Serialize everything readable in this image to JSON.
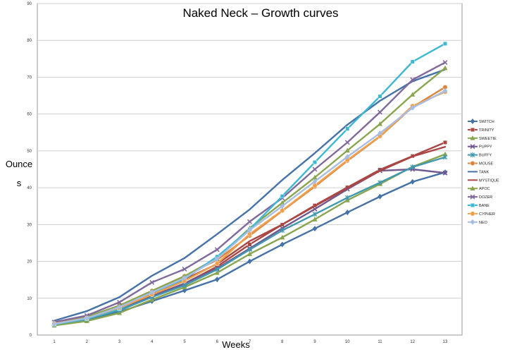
{
  "chart_data": {
    "type": "line",
    "title": "Naked Neck – Growth curves",
    "xlabel": "Weeks",
    "ylabel_line1": "Ounce",
    "ylabel_line2": "s",
    "x": [
      1,
      2,
      3,
      4,
      5,
      6,
      7,
      8,
      9,
      10,
      11,
      12,
      13
    ],
    "x_tick_labels": [
      "1",
      "2",
      "3",
      "4",
      "5",
      "6",
      "7",
      "8",
      "9",
      "10",
      "11",
      "12",
      "13"
    ],
    "ylim": [
      0,
      90
    ],
    "y_ticks": [
      0,
      10,
      20,
      30,
      40,
      50,
      60,
      70,
      80,
      90
    ],
    "y_tick_labels": [
      "0",
      "10",
      "20",
      "30",
      "40",
      "50",
      "60",
      "70",
      "80",
      "90"
    ],
    "grid": true,
    "legend_position": "right",
    "series": [
      {
        "name": "SWITCH",
        "color": "#4572a7",
        "marker": "diamond",
        "values": [
          2.8,
          4.1,
          6.3,
          9.2,
          12.1,
          15.1,
          20.0,
          24.6,
          28.9,
          33.3,
          37.6,
          41.6,
          44.2
        ]
      },
      {
        "name": "TRINITY",
        "color": "#aa4643",
        "marker": "square",
        "values": [
          3.1,
          4.6,
          7.1,
          10.6,
          14.0,
          18.6,
          24.6,
          30.0,
          35.2,
          40.1,
          44.9,
          48.6,
          52.3
        ]
      },
      {
        "name": "SWEETIE",
        "color": "#89a54e",
        "marker": "triangle",
        "values": [
          2.6,
          3.8,
          6.0,
          9.6,
          13.0,
          16.9,
          22.0,
          26.5,
          31.4,
          36.6,
          41.0,
          45.7,
          49.1
        ]
      },
      {
        "name": "PUPPY",
        "color": "#71588f",
        "marker": "x",
        "values": [
          3.0,
          4.5,
          7.2,
          10.5,
          14.0,
          18.1,
          23.5,
          29.0,
          34.2,
          39.6,
          44.6,
          45.0,
          44.0
        ]
      },
      {
        "name": "BUFFY",
        "color": "#4198af",
        "marker": "star",
        "values": [
          2.9,
          4.3,
          6.7,
          10.3,
          13.5,
          17.8,
          23.2,
          28.4,
          32.8,
          37.3,
          41.4,
          45.6,
          48.3
        ]
      },
      {
        "name": "MOUSE",
        "color": "#db843d",
        "marker": "circle",
        "values": [
          3.2,
          4.8,
          8.0,
          12.0,
          16.0,
          20.4,
          27.0,
          33.7,
          40.3,
          47.3,
          53.9,
          61.9,
          67.3
        ]
      },
      {
        "name": "TANK",
        "color": "#4572a7",
        "marker": "none",
        "values": [
          3.9,
          6.5,
          10.3,
          16.1,
          20.9,
          27.4,
          34.1,
          42.1,
          49.4,
          57.1,
          63.6,
          68.9,
          72.1
        ]
      },
      {
        "name": "MYSTIQUE",
        "color": "#aa4643",
        "marker": "none",
        "values": [
          3.2,
          4.8,
          7.7,
          11.5,
          15.1,
          19.3,
          25.5,
          30.0,
          35.0,
          39.9,
          44.6,
          48.5,
          51.1
        ]
      },
      {
        "name": "APOC",
        "color": "#89a54e",
        "marker": "triangle",
        "values": [
          3.3,
          5.0,
          8.0,
          12.0,
          16.0,
          20.9,
          29.0,
          35.9,
          42.8,
          50.1,
          57.3,
          65.3,
          72.5
        ]
      },
      {
        "name": "DOZER",
        "color": "#80699b",
        "marker": "x",
        "values": [
          3.5,
          5.3,
          8.9,
          14.3,
          17.9,
          23.2,
          30.8,
          37.2,
          45.0,
          52.3,
          60.5,
          69.3,
          74.0
        ]
      },
      {
        "name": "BANE",
        "color": "#3db7d2",
        "marker": "square",
        "values": [
          2.9,
          4.4,
          7.1,
          11.5,
          15.2,
          21.3,
          28.7,
          37.7,
          46.9,
          56.0,
          64.8,
          74.2,
          79.1
        ]
      },
      {
        "name": "CYPHER",
        "color": "#f0a04b",
        "marker": "circle",
        "values": [
          3.1,
          4.6,
          7.4,
          11.0,
          14.7,
          19.4,
          27.4,
          33.8,
          40.6,
          47.5,
          54.0,
          62.2,
          66.0
        ]
      },
      {
        "name": "NEO",
        "color": "#a8bde0",
        "marker": "diamond",
        "values": [
          3.0,
          4.6,
          7.6,
          11.6,
          15.5,
          20.7,
          28.5,
          35.0,
          41.7,
          48.4,
          54.8,
          61.7,
          66.3
        ]
      }
    ]
  }
}
